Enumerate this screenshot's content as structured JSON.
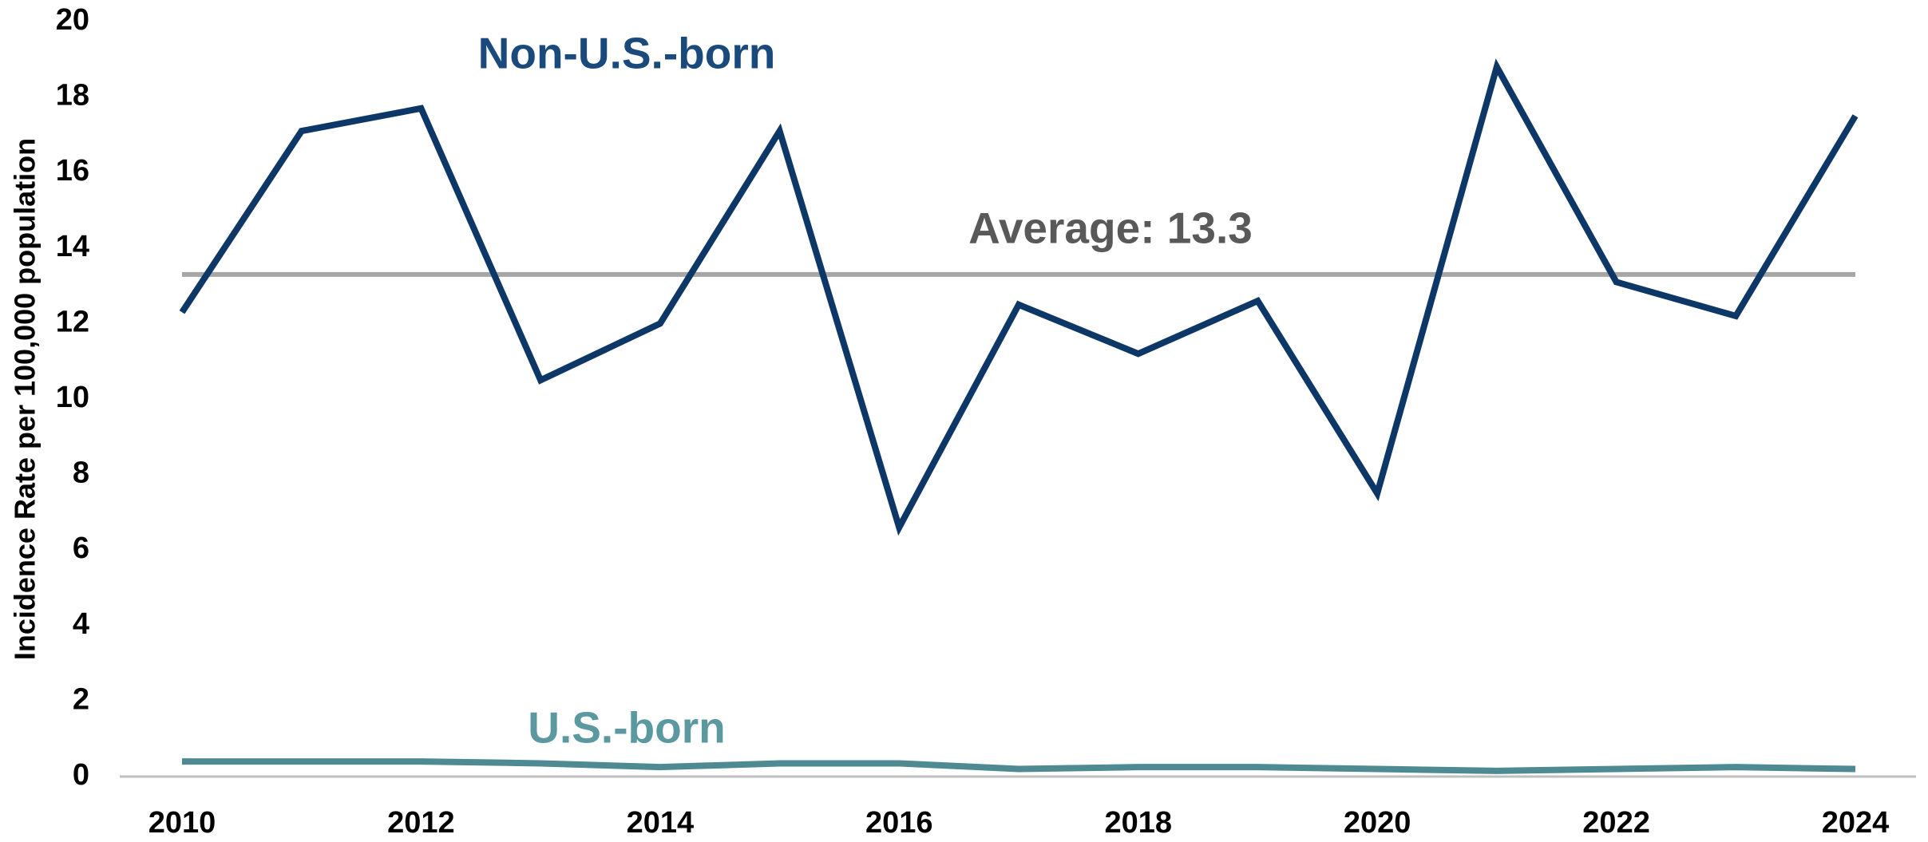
{
  "chart_data": {
    "type": "line",
    "y_label": "Incidence Rate per 100,000 population",
    "x": [
      2010,
      2011,
      2012,
      2013,
      2014,
      2015,
      2016,
      2017,
      2018,
      2019,
      2020,
      2021,
      2022,
      2023,
      2024
    ],
    "series": [
      {
        "name": "Non-U.S.-born",
        "color": "#0d3767",
        "label_color": "#1a4a7c",
        "values": [
          12.3,
          17.1,
          17.7,
          10.5,
          12.0,
          17.1,
          6.6,
          12.5,
          11.2,
          12.6,
          7.5,
          18.8,
          13.1,
          12.2,
          17.5
        ]
      },
      {
        "name": "U.S.-born",
        "color": "#4e8a92",
        "label_color": "#5b98a0",
        "values": [
          0.4,
          0.4,
          0.4,
          0.35,
          0.25,
          0.35,
          0.35,
          0.2,
          0.25,
          0.25,
          0.2,
          0.15,
          0.2,
          0.25,
          0.2
        ]
      }
    ],
    "average": {
      "label": "Average: 13.3",
      "value": 13.3,
      "color": "#a6a6a6",
      "label_color": "#595959"
    },
    "xlim": [
      2010,
      2024
    ],
    "xticks": [
      2010,
      2012,
      2014,
      2016,
      2018,
      2020,
      2022,
      2024
    ],
    "ylim": [
      0,
      20
    ],
    "yticks": [
      0,
      2,
      4,
      6,
      8,
      10,
      12,
      14,
      16,
      18,
      20
    ],
    "grid": false
  }
}
